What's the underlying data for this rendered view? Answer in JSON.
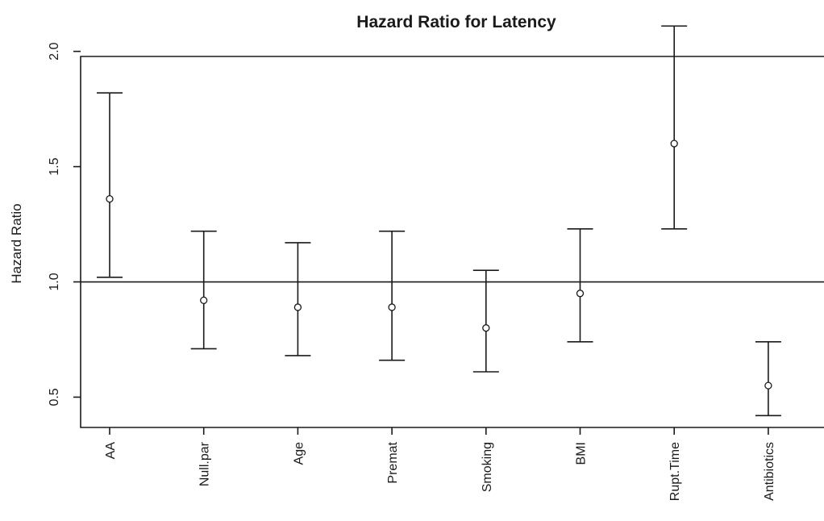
{
  "chart_data": {
    "type": "scatter",
    "title": "Hazard Ratio for Latency",
    "xlabel": "",
    "ylabel": "Hazard Ratio",
    "ylim": [
      0.35,
      2.2
    ],
    "yticks": [
      0.5,
      1.0,
      1.5,
      2.0
    ],
    "ytick_labels": [
      "0.5",
      "1.0",
      "1.5",
      "2.0"
    ],
    "reference_line": 1.0,
    "grid": false,
    "legend": "none",
    "categories": [
      "AA",
      "Null.par",
      "Age",
      "Premat",
      "Smoking",
      "BMI",
      "Rupt.Time",
      "Antibiotics"
    ],
    "series": [
      {
        "values": [
          1.36,
          0.92,
          0.89,
          0.89,
          0.8,
          0.95,
          1.6,
          0.55
        ],
        "lower": [
          1.02,
          0.71,
          0.68,
          0.66,
          0.61,
          0.74,
          1.23,
          0.42
        ],
        "upper": [
          1.82,
          1.22,
          1.17,
          1.22,
          1.05,
          1.23,
          2.11,
          0.74
        ]
      }
    ]
  }
}
